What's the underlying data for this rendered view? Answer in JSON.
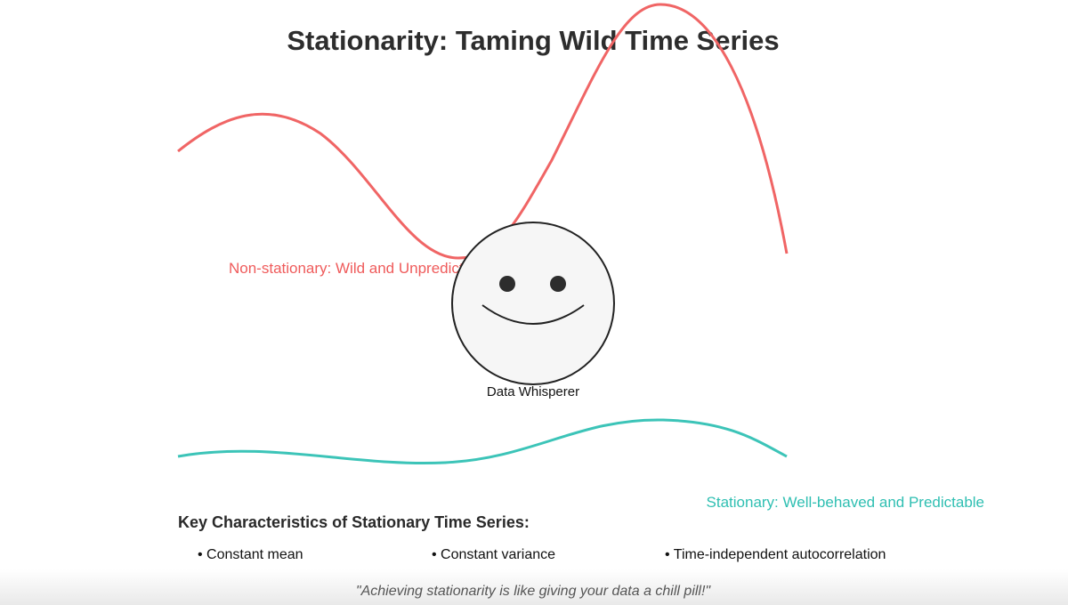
{
  "title": "Stationarity: Taming Wild Time Series",
  "non_stationary_label": "Non-stationary: Wild and Unpredictable",
  "stationary_label": "Stationary: Well-behaved and Predictable",
  "character_label": "Data Whisperer",
  "characteristics": {
    "heading": "Key Characteristics of Stationary Time Series:",
    "items": [
      "• Constant mean",
      "• Constant variance",
      "• Time-independent autocorrelation"
    ]
  },
  "quote": "\"Achieving stationarity is like giving your data a chill pill!\""
}
